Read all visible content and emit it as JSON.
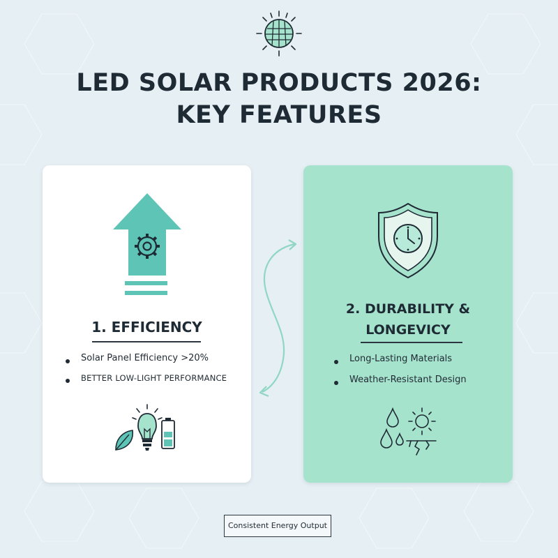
{
  "title_line1": "LED SOLAR PRODUCTS 2026:",
  "title_line2": "KEY FEATURES",
  "cards": [
    {
      "heading": "1. EFFICIENCY",
      "bullets": [
        "Solar Panel Efficiency >20%",
        "BETTER LOW-LIGHT PERFORMANCE"
      ],
      "icons": [
        "up-arrow-gear-icon",
        "leaf-icon",
        "light-bulb-icon",
        "battery-icon"
      ]
    },
    {
      "heading_line1": "2. DURABILITY &",
      "heading_line2": "LONGEVICY",
      "bullets": [
        "Long-Lasting Materials",
        "Weather-Resistant Design"
      ],
      "icons": [
        "shield-clock-icon",
        "water-drops-icon",
        "sun-icon",
        "cracked-ground-icon"
      ]
    }
  ],
  "footer": "Consistent Energy Output",
  "colors": {
    "background": "#e6eff4",
    "teal": "#5ec4b6",
    "mint_card": "#a6e3cd",
    "dark_text": "#1e2a34"
  }
}
